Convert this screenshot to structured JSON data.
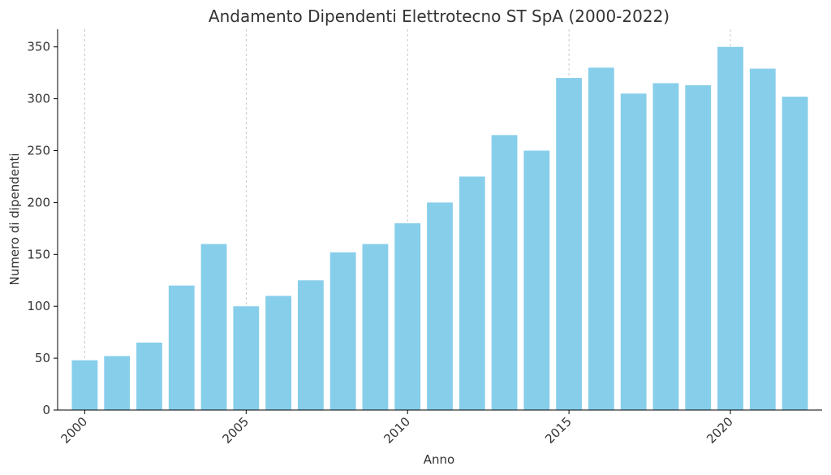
{
  "chart_data": {
    "type": "bar",
    "title": "Andamento Dipendenti Elettrotecno ST SpA (2000-2022)",
    "xlabel": "Anno",
    "ylabel": "Numero di dipendenti",
    "categories": [
      2000,
      2001,
      2002,
      2003,
      2004,
      2005,
      2006,
      2007,
      2008,
      2009,
      2010,
      2011,
      2012,
      2013,
      2014,
      2015,
      2016,
      2017,
      2018,
      2019,
      2020,
      2021,
      2022
    ],
    "values": [
      48,
      52,
      65,
      120,
      160,
      100,
      110,
      125,
      152,
      160,
      180,
      200,
      225,
      265,
      250,
      320,
      330,
      305,
      315,
      313,
      350,
      329,
      302
    ],
    "x_ticks": [
      2000,
      2005,
      2010,
      2015,
      2020
    ],
    "y_ticks": [
      0,
      50,
      100,
      150,
      200,
      250,
      300,
      350
    ],
    "ylim": [
      0,
      367
    ],
    "xlim": [
      1999.16,
      2022.84
    ],
    "grid": "x-dashed",
    "bar_color": "#87ceeb"
  }
}
